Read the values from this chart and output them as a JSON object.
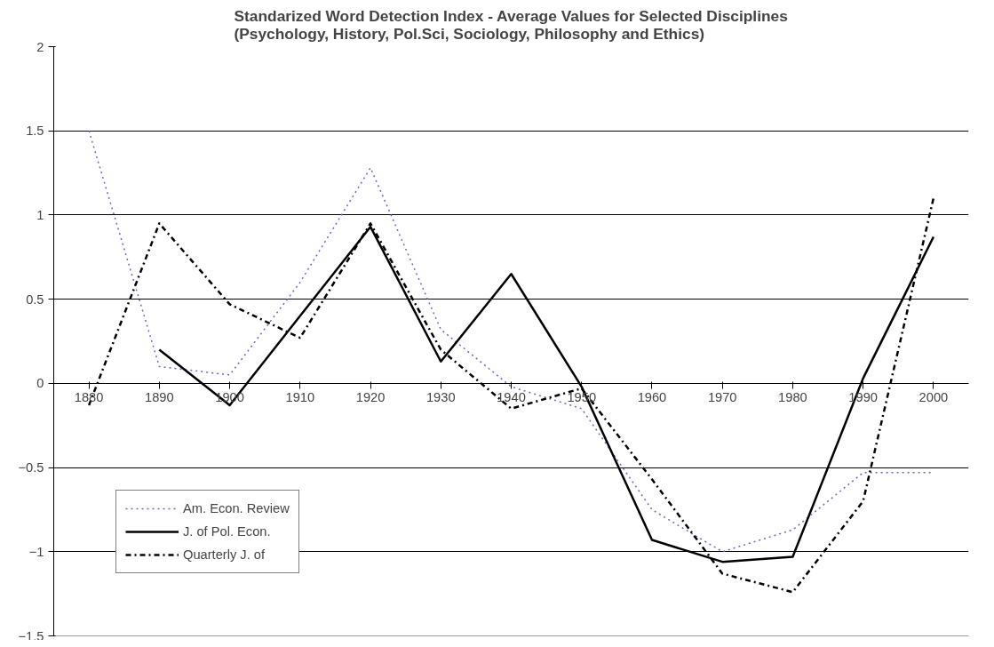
{
  "chart_data": {
    "type": "line",
    "title": "Standarized Word Detection Index - Average Values for Selected Disciplines\n(Psychology, History, Pol.Sci, Sociology, Philosophy and Ethics)",
    "categories": [
      "1880",
      "1890",
      "1900",
      "1910",
      "1920",
      "1930",
      "1940",
      "1950",
      "1960",
      "1970",
      "1980",
      "1990",
      "2000"
    ],
    "series": [
      {
        "name": "Am. Econ. Review",
        "color": "#6666cc",
        "line_style": "dotted",
        "values": [
          1.5,
          0.1,
          0.05,
          0.6,
          1.28,
          0.32,
          -0.02,
          -0.15,
          -0.75,
          -1.0,
          -0.87,
          -0.53,
          -0.53
        ]
      },
      {
        "name": "J. of Pol. Econ.",
        "color": "#000000",
        "line_style": "solid",
        "values": [
          null,
          0.2,
          -0.13,
          0.4,
          0.93,
          0.13,
          0.65,
          -0.02,
          -0.93,
          -1.06,
          -1.03,
          0.03,
          0.87
        ]
      },
      {
        "name": "Quarterly J. of",
        "color": "#000000",
        "line_style": "dashdot",
        "values": [
          -0.13,
          0.95,
          0.47,
          0.27,
          0.95,
          0.2,
          -0.15,
          -0.03,
          -0.57,
          -1.13,
          -1.24,
          -0.7,
          1.1
        ]
      }
    ],
    "ylim": [
      -1.5,
      2
    ],
    "yticks": [
      -1.5,
      -1,
      -0.5,
      0,
      0.5,
      1,
      1.5,
      2
    ],
    "grid": "y",
    "legend": "bottom left",
    "marker": "none"
  }
}
